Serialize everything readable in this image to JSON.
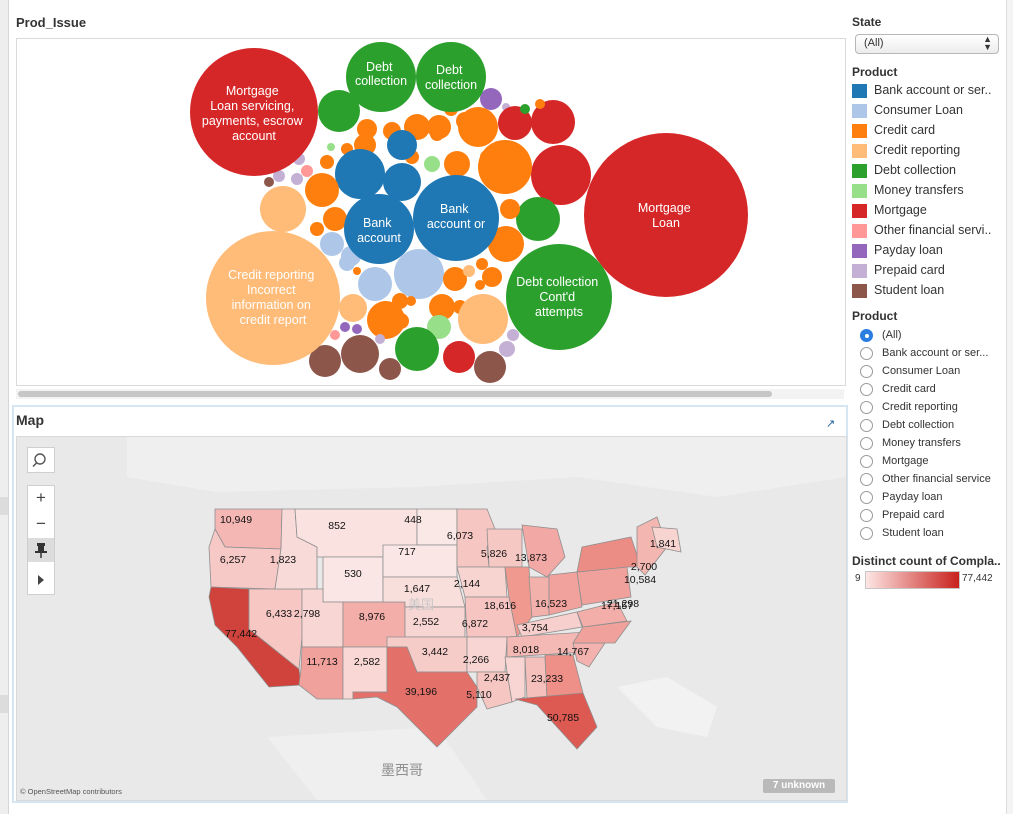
{
  "prod_issue": {
    "title": "Prod_Issue",
    "bubbles_labeled": [
      {
        "label": "Mortgage\nLoan servicing,\npayments, escrow\naccount",
        "product": "Mortgage"
      },
      {
        "label": "Debt\ncollection",
        "product": "Debt collection"
      },
      {
        "label": "Debt\ncollection",
        "product": "Debt collection"
      },
      {
        "label": "Bank\naccount",
        "product": "Bank account or service"
      },
      {
        "label": "Bank\naccount or",
        "product": "Bank account or service"
      },
      {
        "label": "Mortgage\nLoan",
        "product": "Mortgage"
      },
      {
        "label": "Credit reporting\nIncorrect\ninformation on\ncredit report",
        "product": "Credit reporting"
      },
      {
        "label": "Debt collection\nCont'd\nattempts",
        "product": "Debt collection"
      }
    ]
  },
  "map": {
    "title": "Map",
    "country_label": "美国",
    "mexico_label": "墨西哥",
    "unknown_badge": "7 unknown",
    "attribution": "© OpenStreetMap contributors",
    "tools": {
      "search": "search-icon",
      "zoom_in": "+",
      "zoom_out": "−",
      "pin": "pin-icon",
      "play": "play-icon"
    },
    "states": [
      {
        "state": "WA",
        "value": "10,949"
      },
      {
        "state": "OR",
        "value": "6,257"
      },
      {
        "state": "ID",
        "value": "1,823"
      },
      {
        "state": "MT",
        "value": "852"
      },
      {
        "state": "ND",
        "value": "448"
      },
      {
        "state": "MN",
        "value": "6,073"
      },
      {
        "state": "WI",
        "value": "5,826"
      },
      {
        "state": "MI",
        "value": "13,873"
      },
      {
        "state": "ME",
        "value": "1,841"
      },
      {
        "state": "SD",
        "value": "717"
      },
      {
        "state": "WY",
        "value": "530"
      },
      {
        "state": "NE",
        "value": "1,647"
      },
      {
        "state": "IA",
        "value": "2,144"
      },
      {
        "state": "NY",
        "value": "21,298"
      },
      {
        "state": "MA",
        "value": "10,584"
      },
      {
        "state": "NH",
        "value": "2,700"
      },
      {
        "state": "CA",
        "value": "77,442"
      },
      {
        "state": "NV",
        "value": "6,433"
      },
      {
        "state": "UT",
        "value": "2,798"
      },
      {
        "state": "CO",
        "value": "8,976"
      },
      {
        "state": "KS",
        "value": "2,552"
      },
      {
        "state": "MO",
        "value": "6,872"
      },
      {
        "state": "IL",
        "value": "18,616"
      },
      {
        "state": "OH",
        "value": "16,523"
      },
      {
        "state": "PA",
        "value": "17,157"
      },
      {
        "state": "KY",
        "value": "3,754"
      },
      {
        "state": "AZ",
        "value": "11,713"
      },
      {
        "state": "NM",
        "value": "2,582"
      },
      {
        "state": "OK",
        "value": "3,442"
      },
      {
        "state": "AR",
        "value": "2,266"
      },
      {
        "state": "TN",
        "value": "8,018"
      },
      {
        "state": "NC",
        "value": "14,767"
      },
      {
        "state": "TX",
        "value": "39,196"
      },
      {
        "state": "MS",
        "value": "2,437"
      },
      {
        "state": "GA",
        "value": "23,233"
      },
      {
        "state": "LA",
        "value": "5,110"
      },
      {
        "state": "FL",
        "value": "50,785"
      }
    ]
  },
  "filters": {
    "state_title": "State",
    "state_value": "(All)",
    "product_color_title": "Product",
    "product_colors": [
      {
        "label": "Bank account or ser..",
        "color": "#1f77b4"
      },
      {
        "label": "Consumer Loan",
        "color": "#aec7e8"
      },
      {
        "label": "Credit card",
        "color": "#ff7f0e"
      },
      {
        "label": "Credit reporting",
        "color": "#ffbb78"
      },
      {
        "label": "Debt collection",
        "color": "#2ca02c"
      },
      {
        "label": "Money transfers",
        "color": "#98df8a"
      },
      {
        "label": "Mortgage",
        "color": "#d62728"
      },
      {
        "label": "Other financial servi..",
        "color": "#ff9896"
      },
      {
        "label": "Payday loan",
        "color": "#9467bd"
      },
      {
        "label": "Prepaid card",
        "color": "#c5b0d5"
      },
      {
        "label": "Student loan",
        "color": "#8c564b"
      }
    ],
    "product_radio_title": "Product",
    "product_radio": [
      {
        "label": "(All)",
        "selected": true
      },
      {
        "label": "Bank account or ser...",
        "selected": false
      },
      {
        "label": "Consumer Loan",
        "selected": false
      },
      {
        "label": "Credit card",
        "selected": false
      },
      {
        "label": "Credit reporting",
        "selected": false
      },
      {
        "label": "Debt collection",
        "selected": false
      },
      {
        "label": "Money transfers",
        "selected": false
      },
      {
        "label": "Mortgage",
        "selected": false
      },
      {
        "label": "Other financial service",
        "selected": false
      },
      {
        "label": "Payday loan",
        "selected": false
      },
      {
        "label": "Prepaid card",
        "selected": false
      },
      {
        "label": "Student loan",
        "selected": false
      }
    ],
    "distinct_title": "Distinct count of Compla..",
    "distinct_min": "9",
    "distinct_max": "77,442"
  }
}
